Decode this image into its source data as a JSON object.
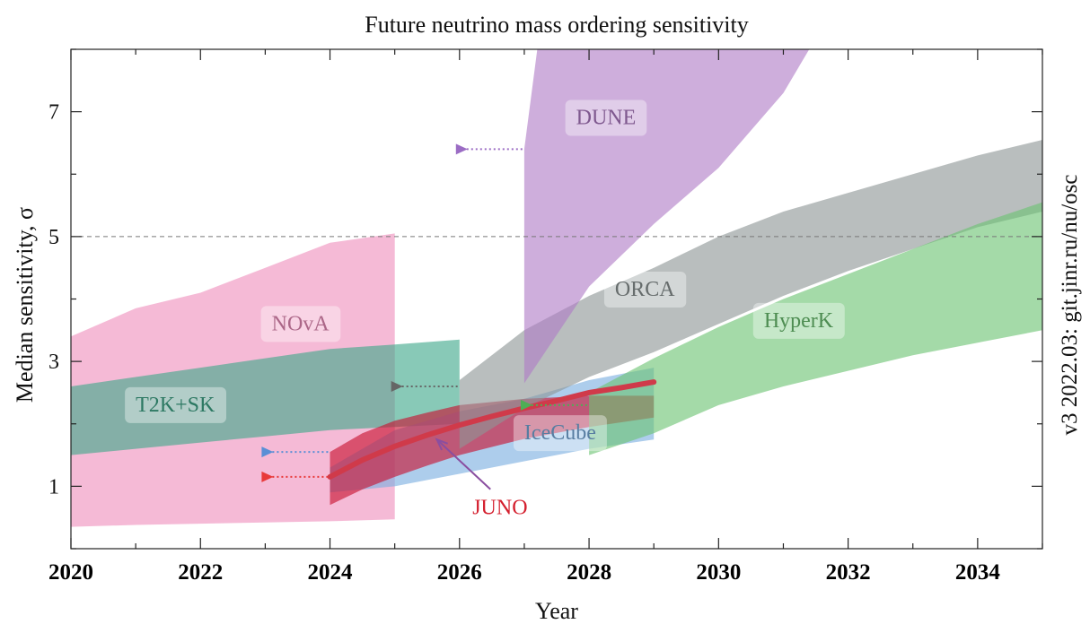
{
  "chart_data": {
    "type": "area",
    "title": "Future neutrino mass ordering sensitivity",
    "xlabel": "Year",
    "ylabel": "Median sensitivity, σ",
    "xlim": [
      2020,
      2035
    ],
    "ylim": [
      0,
      8
    ],
    "x_ticks": [
      "2020",
      "2022",
      "2024",
      "2026",
      "2028",
      "2030",
      "2032",
      "2034"
    ],
    "y_ticks": [
      "1",
      "3",
      "5",
      "7"
    ],
    "reference_line": {
      "y": 5,
      "style": "dashed"
    },
    "version_note": "v3 2022.03: git.jinr.ru/nu/osc",
    "series": [
      {
        "name": "NOvA",
        "color": "#ef8fbd",
        "label": {
          "x": 2023.1,
          "y": 3.5,
          "text": "NOvA"
        },
        "upper": [
          [
            2020,
            3.4
          ],
          [
            2021,
            3.85
          ],
          [
            2022,
            4.1
          ],
          [
            2023,
            4.5
          ],
          [
            2024,
            4.9
          ],
          [
            2025,
            5.05
          ]
        ],
        "lower": [
          [
            2020,
            0.35
          ],
          [
            2021,
            0.38
          ],
          [
            2022,
            0.4
          ],
          [
            2023,
            0.42
          ],
          [
            2024,
            0.44
          ],
          [
            2025,
            0.47
          ]
        ]
      },
      {
        "name": "T2K+SK",
        "color": "#3fa88a",
        "label": {
          "x": 2021.0,
          "y": 2.2,
          "text": "T2K+SK"
        },
        "upper": [
          [
            2020,
            2.6
          ],
          [
            2021,
            2.75
          ],
          [
            2022,
            2.9
          ],
          [
            2023,
            3.05
          ],
          [
            2024,
            3.2
          ],
          [
            2025,
            3.27
          ],
          [
            2026,
            3.35
          ]
        ],
        "lower": [
          [
            2020,
            1.5
          ],
          [
            2021,
            1.6
          ],
          [
            2022,
            1.7
          ],
          [
            2023,
            1.8
          ],
          [
            2024,
            1.9
          ],
          [
            2025,
            1.95
          ],
          [
            2026,
            2.0
          ]
        ]
      },
      {
        "name": "IceCube",
        "color": "#7aaee0",
        "label": {
          "x": 2027.0,
          "y": 1.75,
          "text": "IceCube"
        },
        "upper": [
          [
            2024,
            1.3
          ],
          [
            2025,
            1.9
          ],
          [
            2026,
            2.2
          ],
          [
            2027,
            2.4
          ],
          [
            2028,
            2.7
          ],
          [
            2029,
            2.9
          ]
        ],
        "lower": [
          [
            2024,
            0.9
          ],
          [
            2025,
            1.0
          ],
          [
            2026,
            1.2
          ],
          [
            2027,
            1.4
          ],
          [
            2028,
            1.6
          ],
          [
            2029,
            1.75
          ]
        ]
      },
      {
        "name": "JUNO",
        "color": "#c8102e",
        "label": {
          "x": 2026.2,
          "y": 0.55,
          "text": "JUNO"
        },
        "upper": [
          [
            2024,
            1.55
          ],
          [
            2024.5,
            1.85
          ],
          [
            2025,
            2.05
          ],
          [
            2025.5,
            2.18
          ],
          [
            2026,
            2.3
          ],
          [
            2026.5,
            2.35
          ],
          [
            2027,
            2.4
          ],
          [
            2028,
            2.45
          ],
          [
            2029,
            2.45
          ]
        ],
        "lower": [
          [
            2024,
            0.7
          ],
          [
            2024.5,
            0.95
          ],
          [
            2025,
            1.15
          ],
          [
            2025.5,
            1.33
          ],
          [
            2026,
            1.5
          ],
          [
            2026.5,
            1.63
          ],
          [
            2027,
            1.76
          ],
          [
            2028,
            1.95
          ],
          [
            2029,
            2.1
          ]
        ],
        "central": [
          [
            2024,
            1.15
          ],
          [
            2024.5,
            1.42
          ],
          [
            2025,
            1.64
          ],
          [
            2025.5,
            1.82
          ],
          [
            2026,
            1.98
          ],
          [
            2026.5,
            2.12
          ],
          [
            2027,
            2.25
          ],
          [
            2027.5,
            2.37
          ],
          [
            2028,
            2.5
          ],
          [
            2028.5,
            2.58
          ],
          [
            2029,
            2.67
          ]
        ]
      },
      {
        "name": "ORCA",
        "color": "#8e9696",
        "label": {
          "x": 2028.4,
          "y": 4.05,
          "text": "ORCA"
        },
        "upper": [
          [
            2026,
            2.7
          ],
          [
            2027,
            3.5
          ],
          [
            2028,
            4.05
          ],
          [
            2029,
            4.5
          ],
          [
            2030,
            5.0
          ],
          [
            2031,
            5.4
          ],
          [
            2032,
            5.7
          ],
          [
            2033,
            6.0
          ],
          [
            2034,
            6.3
          ],
          [
            2035,
            6.55
          ]
        ],
        "lower": [
          [
            2026,
            1.6
          ],
          [
            2027,
            2.25
          ],
          [
            2028,
            2.75
          ],
          [
            2029,
            3.15
          ],
          [
            2030,
            3.6
          ],
          [
            2031,
            4.05
          ],
          [
            2032,
            4.45
          ],
          [
            2033,
            4.8
          ],
          [
            2034,
            5.15
          ],
          [
            2035,
            5.4
          ]
        ]
      },
      {
        "name": "DUNE",
        "color": "#b07cc6",
        "label": {
          "x": 2027.8,
          "y": 6.8,
          "text": "DUNE"
        },
        "upper": [
          [
            2027,
            6.4
          ],
          [
            2027.2,
            8.0
          ],
          [
            2031.4,
            8.0
          ]
        ],
        "lower": [
          [
            2027,
            2.65
          ],
          [
            2028,
            4.2
          ],
          [
            2029,
            5.2
          ],
          [
            2030,
            6.1
          ],
          [
            2031,
            7.3
          ],
          [
            2031.4,
            8.0
          ]
        ]
      },
      {
        "name": "HyperK",
        "color": "#6cc472",
        "label": {
          "x": 2030.7,
          "y": 3.55,
          "text": "HyperK"
        },
        "upper": [
          [
            2028,
            2.5
          ],
          [
            2029,
            3.05
          ],
          [
            2030,
            3.55
          ],
          [
            2031,
            4.0
          ],
          [
            2032,
            4.4
          ],
          [
            2033,
            4.8
          ],
          [
            2034,
            5.2
          ],
          [
            2035,
            5.55
          ]
        ],
        "lower": [
          [
            2028,
            1.5
          ],
          [
            2029,
            1.85
          ],
          [
            2030,
            2.3
          ],
          [
            2031,
            2.6
          ],
          [
            2032,
            2.85
          ],
          [
            2033,
            3.1
          ],
          [
            2034,
            3.3
          ],
          [
            2035,
            3.5
          ]
        ]
      }
    ],
    "start_markers": [
      {
        "series": "JUNO",
        "x_from": 2023,
        "x_to": 2024,
        "y": 1.15,
        "color": "#e83a3a"
      },
      {
        "series": "IceCube",
        "x_from": 2023,
        "x_to": 2024,
        "y": 1.55,
        "color": "#5a8fd6"
      },
      {
        "series": "ORCA",
        "x_from": 2025,
        "x_to": 2026,
        "y": 2.6,
        "color": "#666666"
      },
      {
        "series": "DUNE",
        "x_from": 2026,
        "x_to": 2027,
        "y": 6.4,
        "color": "#9b6cc4"
      },
      {
        "series": "HyperK",
        "x_from": 2027,
        "x_to": 2028,
        "y": 2.3,
        "color": "#4fae55"
      }
    ],
    "annotations": [
      {
        "text": "JUNO",
        "arrow_to": {
          "x": 2025.65,
          "y": 1.75
        }
      }
    ]
  }
}
